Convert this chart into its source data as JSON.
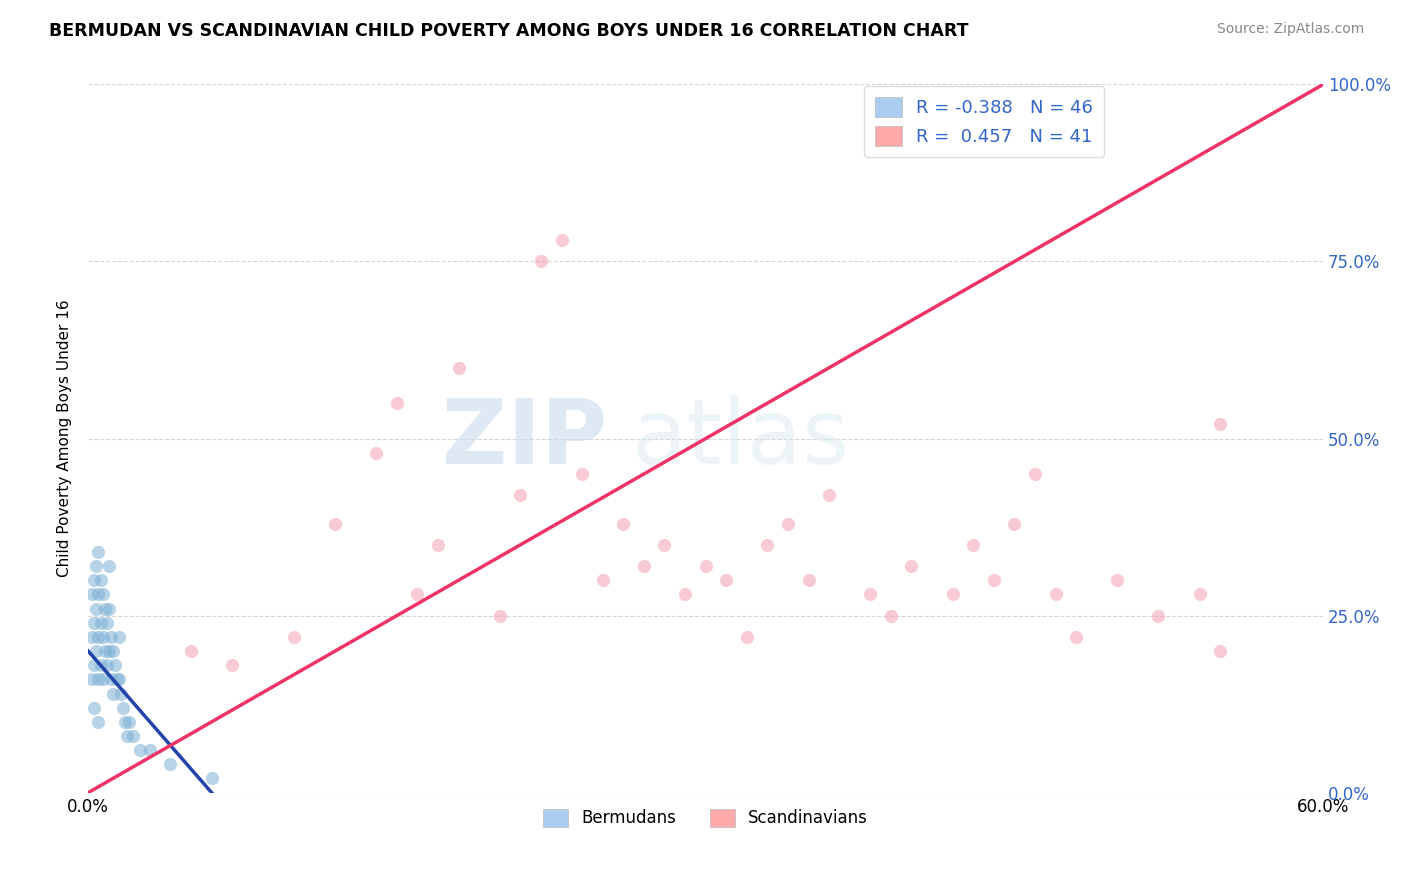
{
  "title": "BERMUDAN VS SCANDINAVIAN CHILD POVERTY AMONG BOYS UNDER 16 CORRELATION CHART",
  "source": "Source: ZipAtlas.com",
  "ylabel": "Child Poverty Among Boys Under 16",
  "xlim": [
    0.0,
    0.6
  ],
  "ylim": [
    0.0,
    1.0
  ],
  "xticks": [
    0.0,
    0.1,
    0.2,
    0.3,
    0.4,
    0.5,
    0.6
  ],
  "xtick_labels": [
    "0.0%",
    "",
    "",
    "",
    "",
    "",
    "60.0%"
  ],
  "ytick_labels": [
    "0.0%",
    "25.0%",
    "50.0%",
    "75.0%",
    "100.0%"
  ],
  "yticks": [
    0.0,
    0.25,
    0.5,
    0.75,
    1.0
  ],
  "R_berm": -0.388,
  "N_berm": 46,
  "R_scand": 0.457,
  "N_scand": 41,
  "bermudan_color": "#7BAFD4",
  "scandinavian_color": "#F4A0B0",
  "bermudan_line_color": "#2244AA",
  "scandinavian_line_color": "#EE3366",
  "bermudan_legend_color": "#AACCEE",
  "scandinavian_legend_color": "#FFAAAA",
  "title_fontsize": 12.5,
  "source_fontsize": 10,
  "watermark_zip": "ZIP",
  "watermark_atlas": "atlas",
  "legend_r_color": "#3366CC",
  "grid_color": "#CCCCCC",
  "berm_x": [
    0.002,
    0.002,
    0.002,
    0.003,
    0.003,
    0.003,
    0.003,
    0.004,
    0.004,
    0.004,
    0.005,
    0.005,
    0.005,
    0.005,
    0.005,
    0.006,
    0.006,
    0.006,
    0.007,
    0.007,
    0.007,
    0.008,
    0.008,
    0.009,
    0.009,
    0.01,
    0.01,
    0.01,
    0.011,
    0.011,
    0.012,
    0.012,
    0.013,
    0.014,
    0.015,
    0.015,
    0.016,
    0.017,
    0.018,
    0.019,
    0.02,
    0.022,
    0.025,
    0.03,
    0.04,
    0.06
  ],
  "berm_y": [
    0.28,
    0.22,
    0.16,
    0.3,
    0.24,
    0.18,
    0.12,
    0.32,
    0.26,
    0.2,
    0.34,
    0.28,
    0.22,
    0.16,
    0.1,
    0.3,
    0.24,
    0.18,
    0.28,
    0.22,
    0.16,
    0.26,
    0.2,
    0.24,
    0.18,
    0.32,
    0.26,
    0.2,
    0.22,
    0.16,
    0.2,
    0.14,
    0.18,
    0.16,
    0.22,
    0.16,
    0.14,
    0.12,
    0.1,
    0.08,
    0.1,
    0.08,
    0.06,
    0.06,
    0.04,
    0.02
  ],
  "scand_x": [
    0.05,
    0.07,
    0.1,
    0.12,
    0.14,
    0.15,
    0.16,
    0.17,
    0.18,
    0.2,
    0.21,
    0.22,
    0.23,
    0.24,
    0.25,
    0.26,
    0.27,
    0.28,
    0.29,
    0.3,
    0.31,
    0.32,
    0.33,
    0.34,
    0.35,
    0.36,
    0.38,
    0.39,
    0.4,
    0.42,
    0.43,
    0.44,
    0.45,
    0.46,
    0.47,
    0.48,
    0.5,
    0.52,
    0.54,
    0.55,
    0.55
  ],
  "scand_y": [
    0.2,
    0.18,
    0.22,
    0.38,
    0.48,
    0.55,
    0.28,
    0.35,
    0.6,
    0.25,
    0.42,
    0.75,
    0.78,
    0.45,
    0.3,
    0.38,
    0.32,
    0.35,
    0.28,
    0.32,
    0.3,
    0.22,
    0.35,
    0.38,
    0.3,
    0.42,
    0.28,
    0.25,
    0.32,
    0.28,
    0.35,
    0.3,
    0.38,
    0.45,
    0.28,
    0.22,
    0.3,
    0.25,
    0.28,
    0.52,
    0.2
  ]
}
